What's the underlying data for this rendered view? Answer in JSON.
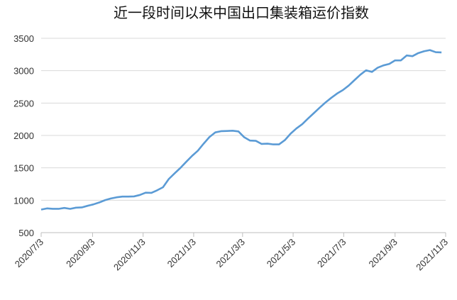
{
  "chart_data": {
    "type": "line",
    "title": "近一段时间以来中国出口集装箱运价指数",
    "xlabel": "",
    "ylabel": "",
    "ylim": [
      500,
      3500
    ],
    "yticks": [
      500,
      1000,
      1500,
      2000,
      2500,
      3000,
      3500
    ],
    "xlim": [
      "2020-07-03",
      "2021-11-03"
    ],
    "xticks": [
      {
        "date": "2020-07-03",
        "label": "2020/7/3"
      },
      {
        "date": "2020-09-03",
        "label": "2020/9/3"
      },
      {
        "date": "2020-11-03",
        "label": "2020/11/3"
      },
      {
        "date": "2021-01-03",
        "label": "2021/1/3"
      },
      {
        "date": "2021-03-03",
        "label": "2021/3/3"
      },
      {
        "date": "2021-05-03",
        "label": "2021/5/3"
      },
      {
        "date": "2021-07-03",
        "label": "2021/7/3"
      },
      {
        "date": "2021-09-03",
        "label": "2021/9/3"
      },
      {
        "date": "2021-11-03",
        "label": "2021/11/3"
      }
    ],
    "grid": true,
    "legend": "none",
    "line_color": "#5b9bd5",
    "grid_color": "#d9d9d9",
    "x": [
      "2020-07-03",
      "2020-07-10",
      "2020-07-17",
      "2020-07-24",
      "2020-07-31",
      "2020-08-07",
      "2020-08-14",
      "2020-08-21",
      "2020-08-28",
      "2020-09-04",
      "2020-09-11",
      "2020-09-18",
      "2020-09-25",
      "2020-10-02",
      "2020-10-09",
      "2020-10-16",
      "2020-10-23",
      "2020-10-30",
      "2020-11-06",
      "2020-11-13",
      "2020-11-20",
      "2020-11-27",
      "2020-12-04",
      "2020-12-11",
      "2020-12-18",
      "2020-12-25",
      "2021-01-01",
      "2021-01-08",
      "2021-01-15",
      "2021-01-22",
      "2021-01-29",
      "2021-02-05",
      "2021-02-12",
      "2021-02-19",
      "2021-02-26",
      "2021-03-05",
      "2021-03-12",
      "2021-03-19",
      "2021-03-26",
      "2021-04-02",
      "2021-04-09",
      "2021-04-16",
      "2021-04-23",
      "2021-04-30",
      "2021-05-07",
      "2021-05-14",
      "2021-05-21",
      "2021-05-28",
      "2021-06-04",
      "2021-06-11",
      "2021-06-18",
      "2021-06-25",
      "2021-07-02",
      "2021-07-09",
      "2021-07-16",
      "2021-07-23",
      "2021-07-30",
      "2021-08-06",
      "2021-08-13",
      "2021-08-20",
      "2021-08-27",
      "2021-09-03",
      "2021-09-10",
      "2021-09-17",
      "2021-09-24",
      "2021-10-01",
      "2021-10-08",
      "2021-10-15",
      "2021-10-22",
      "2021-10-29"
    ],
    "values": [
      856,
      874,
      867,
      867,
      881,
      867,
      885,
      889,
      914,
      936,
      965,
      1001,
      1027,
      1045,
      1056,
      1056,
      1059,
      1081,
      1117,
      1114,
      1154,
      1201,
      1328,
      1415,
      1499,
      1593,
      1684,
      1764,
      1873,
      1975,
      2047,
      2066,
      2069,
      2073,
      2062,
      1972,
      1921,
      1917,
      1869,
      1873,
      1862,
      1862,
      1928,
      2029,
      2109,
      2175,
      2262,
      2345,
      2429,
      2509,
      2581,
      2647,
      2701,
      2770,
      2854,
      2937,
      3006,
      2981,
      3046,
      3082,
      3104,
      3159,
      3159,
      3235,
      3224,
      3272,
      3300,
      3318,
      3286,
      3282
    ]
  }
}
